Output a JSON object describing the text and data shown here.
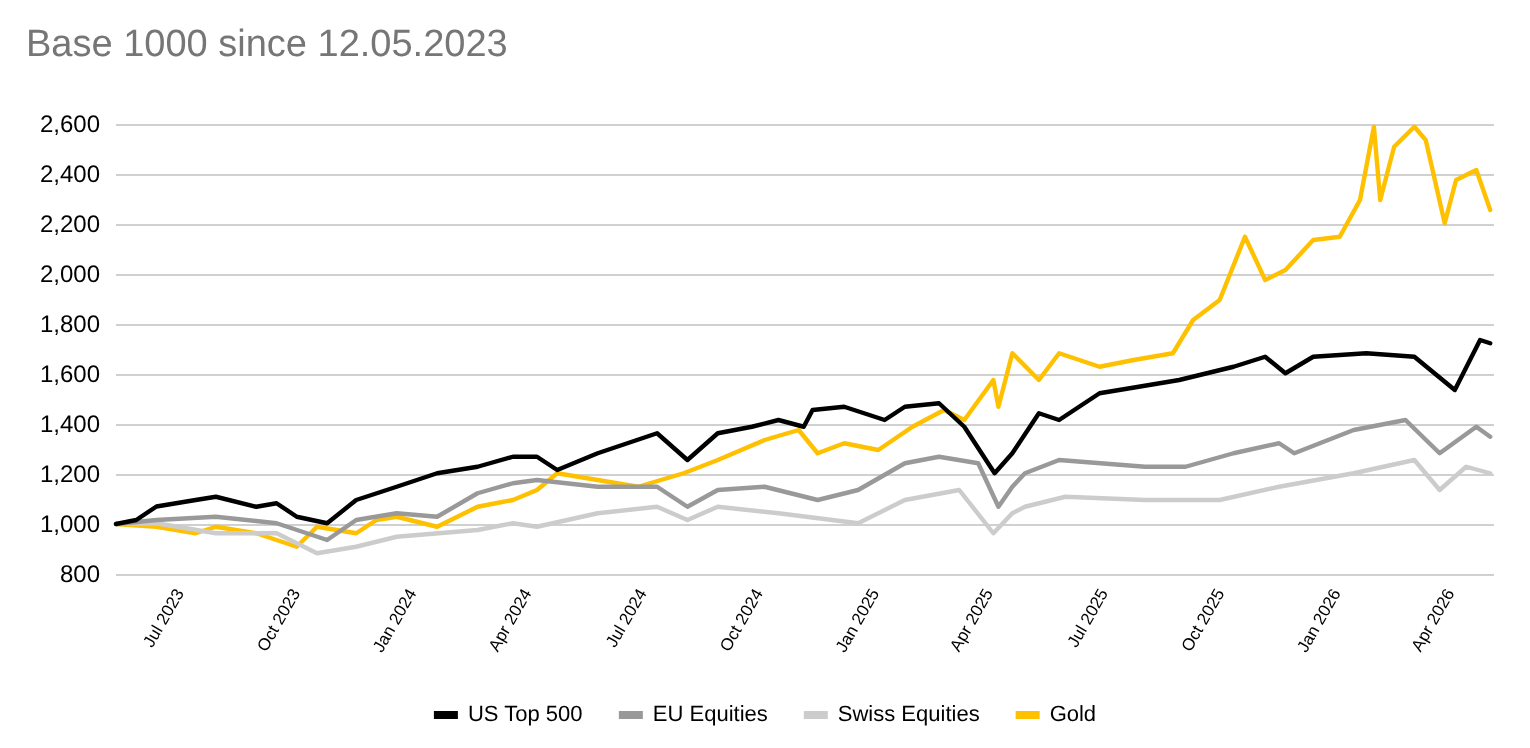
{
  "chart_data": {
    "type": "line",
    "title": "Base 1000 since 12.05.2023",
    "xlim": [
      "2023-05-12",
      "2026-05-06"
    ],
    "xticks": [
      {
        "value": "2023-07-01",
        "label": "Jul 2023"
      },
      {
        "value": "2023-10-01",
        "label": "Oct 2023"
      },
      {
        "value": "2024-01-01",
        "label": "Jan 2024"
      },
      {
        "value": "2024-04-01",
        "label": "Apr 2024"
      },
      {
        "value": "2024-07-01",
        "label": "Jul 2024"
      },
      {
        "value": "2024-10-01",
        "label": "Oct 2024"
      },
      {
        "value": "2025-01-01",
        "label": "Jan 2025"
      },
      {
        "value": "2025-04-01",
        "label": "Apr 2025"
      },
      {
        "value": "2025-07-01",
        "label": "Jul 2025"
      },
      {
        "value": "2025-10-01",
        "label": "Oct 2025"
      },
      {
        "value": "2026-01-01",
        "label": "Jan 2026"
      },
      {
        "value": "2026-04-01",
        "label": "Apr 2026"
      }
    ],
    "ylim": [
      800,
      2600
    ],
    "yticks": [
      {
        "value": 800,
        "label": "800"
      },
      {
        "value": 1000,
        "label": "1,000"
      },
      {
        "value": 1200,
        "label": "1,200"
      },
      {
        "value": 1400,
        "label": "1,400"
      },
      {
        "value": 1600,
        "label": "1,600"
      },
      {
        "value": 1800,
        "label": "1,800"
      },
      {
        "value": 2000,
        "label": "2,000"
      },
      {
        "value": 2200,
        "label": "2,200"
      },
      {
        "value": 2400,
        "label": "2,400"
      },
      {
        "value": 2600,
        "label": "2,600"
      }
    ],
    "grid": "y",
    "legend": "bottom",
    "marker": "none",
    "line_style": "solid",
    "series": [
      {
        "name": "US Top 500",
        "color": "#000000",
        "x": [
          "2023-05-12",
          "2023-05-28",
          "2023-06-13",
          "2023-07-14",
          "2023-07-30",
          "2023-08-31",
          "2023-09-16",
          "2023-10-02",
          "2023-10-26",
          "2023-11-18",
          "2023-12-20",
          "2024-01-21",
          "2024-02-22",
          "2024-03-21",
          "2024-04-09",
          "2024-04-25",
          "2024-05-27",
          "2024-07-13",
          "2024-08-06",
          "2024-08-30",
          "2024-09-26",
          "2024-10-17",
          "2024-11-06",
          "2024-11-13",
          "2024-12-08",
          "2025-01-09",
          "2025-01-25",
          "2025-02-21",
          "2025-03-13",
          "2025-04-06",
          "2025-04-20",
          "2025-05-11",
          "2025-05-27",
          "2025-06-28",
          "2025-07-29",
          "2025-08-30",
          "2025-10-12",
          "2025-11-06",
          "2025-11-22",
          "2025-12-14",
          "2026-01-25",
          "2026-03-04",
          "2026-04-05",
          "2026-04-25",
          "2026-05-03"
        ],
        "values": [
          1000,
          1016,
          1070,
          1096,
          1109,
          1069,
          1083,
          1029,
          1003,
          1096,
          1149,
          1203,
          1229,
          1269,
          1269,
          1216,
          1283,
          1363,
          1256,
          1363,
          1389,
          1416,
          1389,
          1456,
          1469,
          1416,
          1469,
          1483,
          1389,
          1203,
          1283,
          1443,
          1416,
          1523,
          1549,
          1576,
          1629,
          1669,
          1603,
          1669,
          1683,
          1669,
          1536,
          1736,
          1723
        ]
      },
      {
        "name": "EU Equities",
        "color": "#999999",
        "x": [
          "2023-05-12",
          "2023-06-13",
          "2023-07-30",
          "2023-09-16",
          "2023-10-10",
          "2023-10-26",
          "2023-11-18",
          "2023-12-20",
          "2024-01-21",
          "2024-02-22",
          "2024-03-21",
          "2024-04-09",
          "2024-05-27",
          "2024-07-13",
          "2024-08-06",
          "2024-08-30",
          "2024-10-06",
          "2024-11-17",
          "2024-12-19",
          "2025-01-25",
          "2025-02-21",
          "2025-03-24",
          "2025-04-09",
          "2025-04-20",
          "2025-04-30",
          "2025-05-27",
          "2025-08-03",
          "2025-09-04",
          "2025-10-12",
          "2025-11-17",
          "2025-11-29",
          "2026-01-15",
          "2026-02-25",
          "2026-03-24",
          "2026-04-22",
          "2026-05-03"
        ],
        "values": [
          1000,
          1016,
          1029,
          1003,
          963,
          936,
          1016,
          1043,
          1029,
          1123,
          1163,
          1176,
          1149,
          1149,
          1069,
          1136,
          1149,
          1096,
          1136,
          1243,
          1269,
          1243,
          1069,
          1149,
          1203,
          1256,
          1229,
          1229,
          1283,
          1323,
          1283,
          1376,
          1416,
          1283,
          1389,
          1349
        ]
      },
      {
        "name": "Swiss Equities",
        "color": "#cccccc",
        "x": [
          "2023-05-12",
          "2023-06-13",
          "2023-07-30",
          "2023-09-16",
          "2023-10-18",
          "2023-11-18",
          "2023-12-20",
          "2024-02-22",
          "2024-03-21",
          "2024-04-09",
          "2024-05-27",
          "2024-07-13",
          "2024-08-06",
          "2024-08-30",
          "2024-10-17",
          "2024-12-19",
          "2025-01-25",
          "2025-03-09",
          "2025-04-05",
          "2025-04-20",
          "2025-04-30",
          "2025-06-01",
          "2025-08-03",
          "2025-10-01",
          "2025-11-17",
          "2026-01-15",
          "2026-03-04",
          "2026-03-24",
          "2026-04-14",
          "2026-05-03"
        ],
        "values": [
          1000,
          1003,
          963,
          963,
          883,
          909,
          949,
          976,
          1003,
          989,
          1043,
          1069,
          1016,
          1069,
          1043,
          1003,
          1096,
          1136,
          963,
          1043,
          1069,
          1109,
          1096,
          1096,
          1149,
          1203,
          1256,
          1136,
          1229,
          1203
        ]
      },
      {
        "name": "Gold",
        "color": "#ffc000",
        "x": [
          "2023-05-12",
          "2023-06-13",
          "2023-07-14",
          "2023-07-30",
          "2023-08-31",
          "2023-10-02",
          "2023-10-18",
          "2023-11-18",
          "2023-12-04",
          "2023-12-20",
          "2024-01-21",
          "2024-02-22",
          "2024-03-21",
          "2024-04-09",
          "2024-04-25",
          "2024-05-27",
          "2024-06-28",
          "2024-08-03",
          "2024-08-30",
          "2024-10-06",
          "2024-11-02",
          "2024-11-17",
          "2024-12-08",
          "2025-01-04",
          "2025-01-31",
          "2025-02-25",
          "2025-03-13",
          "2025-04-05",
          "2025-04-09",
          "2025-04-20",
          "2025-05-11",
          "2025-05-27",
          "2025-06-28",
          "2025-07-25",
          "2025-08-25",
          "2025-09-10",
          "2025-10-01",
          "2025-10-21",
          "2025-11-06",
          "2025-11-22",
          "2025-12-14",
          "2026-01-04",
          "2026-01-20",
          "2026-01-31",
          "2026-02-05",
          "2026-02-16",
          "2026-03-04",
          "2026-03-13",
          "2026-03-28",
          "2026-04-06",
          "2026-04-22",
          "2026-05-03"
        ],
        "values": [
          1000,
          989,
          963,
          989,
          963,
          909,
          989,
          963,
          1016,
          1029,
          989,
          1069,
          1096,
          1136,
          1203,
          1176,
          1149,
          1203,
          1256,
          1336,
          1376,
          1283,
          1323,
          1296,
          1389,
          1456,
          1416,
          1576,
          1469,
          1683,
          1576,
          1683,
          1629,
          1656,
          1683,
          1816,
          1896,
          2149,
          1976,
          2016,
          2136,
          2149,
          2296,
          2589,
          2296,
          2509,
          2589,
          2536,
          2203,
          2376,
          2416,
          2256
        ]
      }
    ]
  }
}
